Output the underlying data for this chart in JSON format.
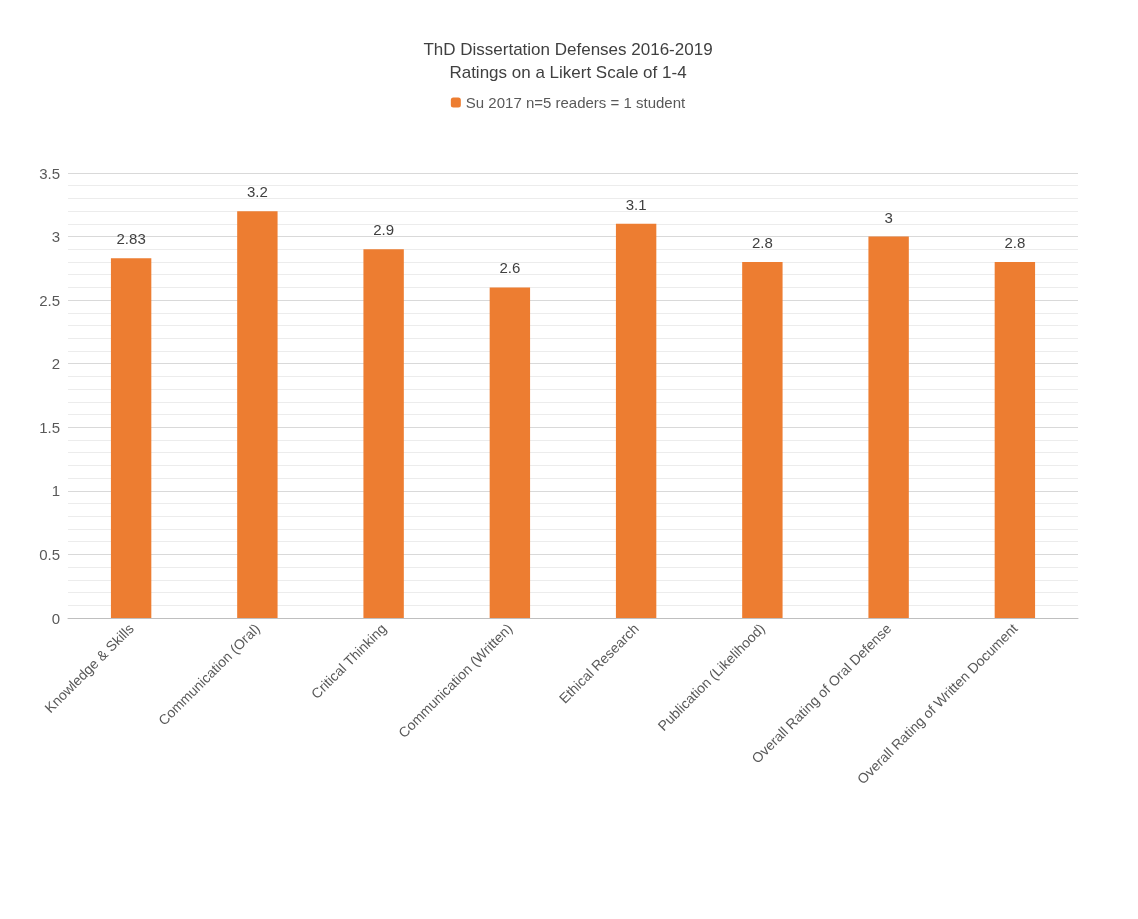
{
  "chart_data": {
    "type": "bar",
    "title": "ThD Dissertation Defenses 2016-2019",
    "subtitle": "Ratings on a Likert Scale of 1-4",
    "categories": [
      "Knowledge & Skills",
      "Communication (Oral)",
      "Critical Thinking",
      "Communication (Written)",
      "Ethical Research",
      "Publication (Likelihood)",
      "Overall Rating of Oral Defense",
      "Overall Rating of Written Document"
    ],
    "series": [
      {
        "name": "Su 2017 n=5 readers = 1 student",
        "color": "#ed7d31",
        "values": [
          2.83,
          3.2,
          2.9,
          2.6,
          3.1,
          2.8,
          3,
          2.8
        ]
      }
    ],
    "ylim": [
      0,
      3.5
    ],
    "yticks": [
      0,
      0.5,
      1,
      1.5,
      2,
      2.5,
      3,
      3.5
    ],
    "grid": "y",
    "legend": "top",
    "data_labels": true
  }
}
